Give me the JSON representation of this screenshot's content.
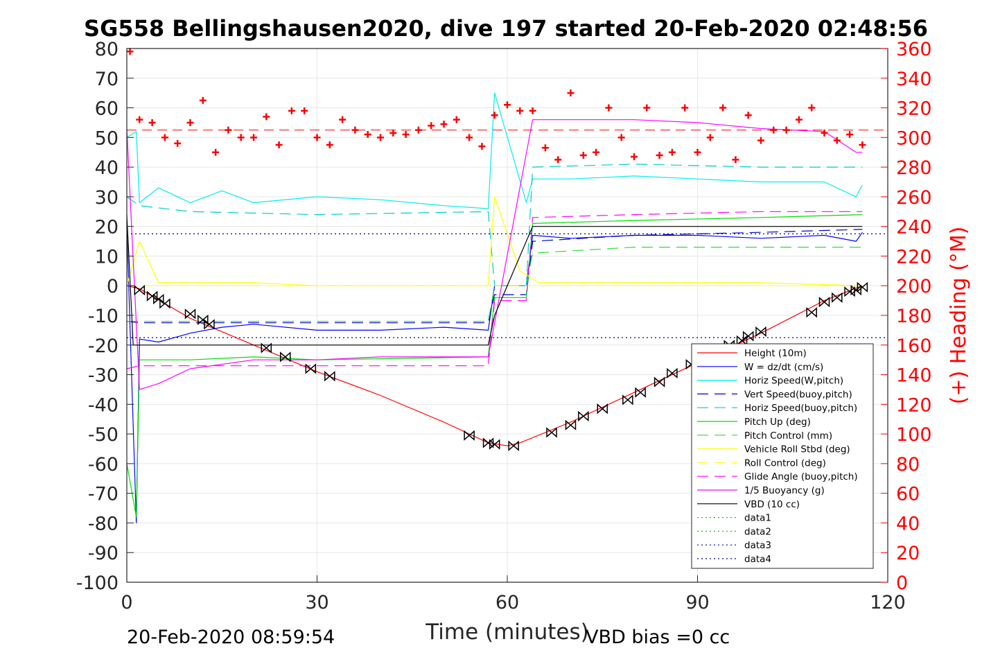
{
  "chart_data": {
    "type": "line",
    "title": "SG558 Bellingshausen2020, dive 197 started 20-Feb-2020 02:48:56",
    "xlabel": "Time (minutes)",
    "ylabel": "",
    "y2label": "(+) Heading (°M)",
    "xlim": [
      0,
      120
    ],
    "ylim": [
      -100,
      80
    ],
    "y2lim": [
      0,
      360
    ],
    "xticks": [
      "0",
      "30",
      "60",
      "90",
      "120"
    ],
    "yticks": [
      "80",
      "70",
      "60",
      "50",
      "40",
      "30",
      "20",
      "10",
      "0",
      "-10",
      "-20",
      "-30",
      "-40",
      "-50",
      "-60",
      "-70",
      "-80",
      "-90",
      "-100"
    ],
    "y2ticks": [
      "360",
      "340",
      "320",
      "300",
      "280",
      "260",
      "240",
      "220",
      "200",
      "180",
      "160",
      "140",
      "120",
      "100",
      "80",
      "60",
      "40",
      "20",
      "0"
    ],
    "grid": true,
    "legend_position": "bottom-right",
    "footer_left": "20-Feb-2020 08:59:54",
    "footer_right": "VBD bias =0 cc",
    "series": [
      {
        "name": "Height (10m)",
        "color": "#ff0000",
        "style": "solid",
        "x": [
          0,
          2,
          10,
          20,
          30,
          40,
          50,
          57,
          60,
          62,
          70,
          80,
          90,
          100,
          110,
          116
        ],
        "y": [
          0,
          -1,
          -11,
          -20,
          -29,
          -37,
          -46,
          -53,
          -54,
          -53,
          -46,
          -36,
          -26,
          -16,
          -5,
          0
        ]
      },
      {
        "name": "W = dz/dt (cm/s)",
        "color": "#0000ff",
        "style": "solid",
        "x": [
          0,
          1.5,
          2,
          5,
          10,
          15,
          20,
          30,
          40,
          50,
          57,
          58,
          63,
          64,
          70,
          80,
          90,
          100,
          110,
          115,
          116
        ],
        "y": [
          20,
          -80,
          -18,
          -19,
          -16,
          -14,
          -13,
          -15,
          -15,
          -14,
          -15,
          0,
          0,
          17,
          16,
          17,
          17,
          16,
          17,
          15,
          18
        ]
      },
      {
        "name": "Horiz Speed(W,pitch)",
        "color": "#00eeee",
        "style": "solid",
        "x": [
          0,
          1.5,
          2,
          5,
          10,
          15,
          20,
          30,
          40,
          50,
          57,
          58,
          63,
          64,
          70,
          80,
          90,
          100,
          110,
          115,
          116
        ],
        "y": [
          50,
          52,
          28,
          33,
          28,
          32,
          28,
          30,
          29,
          27,
          26,
          65,
          28,
          36,
          36,
          37,
          36,
          35,
          35,
          30,
          34
        ]
      },
      {
        "name": "Vert Speed(buoy,pitch)",
        "color": "#0000cc",
        "style": "dashed",
        "x": [
          0,
          2,
          10,
          30,
          57,
          58,
          63,
          64,
          80,
          100,
          116
        ],
        "y": [
          -12,
          -12.5,
          -12.5,
          -12.5,
          -12.5,
          -3,
          -3,
          15,
          17,
          18,
          19
        ]
      },
      {
        "name": "Horiz Speed(buoy,pitch)",
        "color": "#00cccc",
        "style": "dashed",
        "x": [
          0,
          2,
          10,
          30,
          57,
          58,
          63,
          64,
          80,
          100,
          116
        ],
        "y": [
          30,
          27,
          25,
          24,
          25,
          0,
          0,
          40,
          41,
          40,
          40
        ]
      },
      {
        "name": "Pitch Up (deg)",
        "color": "#00dd00",
        "style": "solid",
        "x": [
          0,
          1.5,
          2,
          10,
          20,
          30,
          57,
          58,
          63,
          64,
          80,
          100,
          116
        ],
        "y": [
          -60,
          -78,
          -25,
          -25,
          -24,
          -25,
          -24,
          -4,
          -4,
          21,
          22,
          23,
          24
        ]
      },
      {
        "name": "Pitch Control (mm)",
        "color": "#33dd33",
        "style": "dashed",
        "x": [
          0,
          2,
          10,
          30,
          57,
          58,
          63,
          64,
          80,
          100,
          116
        ],
        "y": [
          -12,
          -12,
          -12,
          -12,
          -12,
          0,
          0,
          11,
          13,
          13,
          13
        ]
      },
      {
        "name": "Vehicle Roll Stbd (deg)",
        "color": "#ffff00",
        "style": "solid",
        "x": [
          0,
          2,
          5,
          10,
          20,
          30,
          40,
          57,
          58,
          62,
          65,
          80,
          100,
          116
        ],
        "y": [
          0,
          15,
          1,
          1,
          1,
          0,
          0,
          0,
          30,
          5,
          1,
          1,
          1,
          0
        ]
      },
      {
        "name": "Roll Control (deg)",
        "color": "#ffff33",
        "style": "dashed",
        "x": [
          0,
          2,
          10,
          30,
          57,
          58,
          63,
          64,
          80,
          100,
          116
        ],
        "y": [
          0,
          0,
          0,
          0,
          0,
          0,
          0,
          0,
          0,
          0,
          0
        ]
      },
      {
        "name": "Glide Angle (buoy,pitch)",
        "color": "#ff00ff",
        "style": "dashed",
        "x": [
          0,
          2,
          10,
          30,
          57,
          58,
          63,
          64,
          80,
          100,
          116
        ],
        "y": [
          -28,
          -27,
          -27,
          -27,
          -27,
          -5,
          -5,
          23,
          24,
          25,
          25
        ]
      },
      {
        "name": "1/5 Buoyancy (g)",
        "color": "#ff00ff",
        "style": "solid",
        "x": [
          0,
          2,
          5,
          10,
          20,
          30,
          40,
          57,
          64,
          70,
          80,
          90,
          100,
          110,
          115,
          116
        ],
        "y": [
          53,
          -35,
          -33,
          -28,
          -25,
          -25,
          -24,
          -24,
          56,
          56,
          56,
          55,
          53,
          52,
          45,
          45
        ]
      },
      {
        "name": "VBD (10 cc)",
        "color": "#000000",
        "style": "solid",
        "x": [
          0,
          1,
          2,
          57,
          58,
          64,
          116
        ],
        "y": [
          24,
          -20,
          -20,
          -20,
          -10,
          20,
          20
        ]
      },
      {
        "name": "data1",
        "color": "#00cc00",
        "style": "dotted",
        "x": [],
        "y": []
      },
      {
        "name": "data2",
        "color": "#00cc00",
        "style": "dotted",
        "x": [],
        "y": []
      },
      {
        "name": "data3",
        "color": "#000080",
        "style": "dotted",
        "x": [
          0,
          120
        ],
        "y": [
          17.5,
          17.5
        ]
      },
      {
        "name": "data4",
        "color": "#000080",
        "style": "dotted",
        "x": [
          0,
          120
        ],
        "y": [
          -17.5,
          -17.5
        ]
      }
    ],
    "heading": {
      "color": "#ff0000",
      "marker": "+",
      "axis": "right",
      "mean": 305,
      "x": [
        0.5,
        2,
        4,
        6,
        8,
        10,
        12,
        14,
        16,
        18,
        20,
        22,
        24,
        26,
        28,
        30,
        32,
        34,
        36,
        38,
        40,
        42,
        44,
        46,
        48,
        50,
        52,
        54,
        56,
        58,
        60,
        62,
        64,
        66,
        68,
        70,
        72,
        74,
        76,
        78,
        80,
        82,
        84,
        86,
        88,
        90,
        92,
        94,
        96,
        98,
        100,
        102,
        104,
        106,
        108,
        110,
        112,
        114,
        116
      ],
      "y": [
        358,
        312,
        310,
        300,
        296,
        310,
        325,
        290,
        305,
        300,
        300,
        314,
        295,
        318,
        318,
        300,
        295,
        312,
        305,
        302,
        300,
        303,
        302,
        305,
        308,
        309,
        312,
        300,
        294,
        315,
        322,
        318,
        318,
        293,
        285,
        330,
        288,
        290,
        320,
        300,
        287,
        320,
        288,
        290,
        320,
        290,
        300,
        320,
        285,
        315,
        298,
        305,
        305,
        312,
        320,
        303,
        298,
        302,
        295
      ]
    },
    "vbd_markers": {
      "color": "#000000",
      "x": [
        2,
        4,
        5,
        6,
        10,
        12,
        13,
        22,
        25,
        29,
        32,
        54,
        57,
        58,
        61,
        67,
        70,
        72,
        75,
        79,
        81,
        84,
        86,
        89,
        92,
        95,
        97,
        98,
        100,
        108,
        110,
        112,
        114,
        115,
        116
      ],
      "y": [
        -1.5,
        -3.5,
        -4.5,
        -6,
        -9.5,
        -11.5,
        -13,
        -21,
        -24,
        -28,
        -30.5,
        -50.5,
        -53,
        -53.5,
        -54,
        -49.5,
        -47,
        -44,
        -41.5,
        -38.5,
        -36,
        -32.5,
        -29.5,
        -26.5,
        -22.5,
        -20,
        -18.5,
        -17,
        -15.5,
        -9,
        -5.5,
        -4,
        -2,
        -1.5,
        -0.5
      ]
    }
  }
}
